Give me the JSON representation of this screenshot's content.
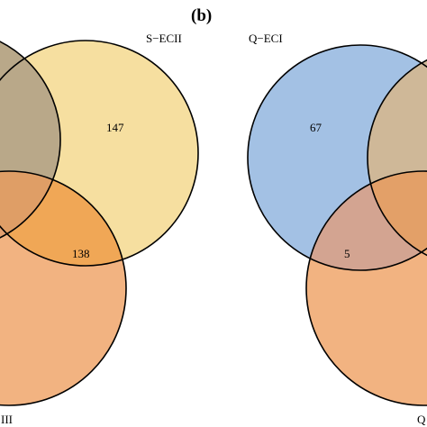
{
  "panel_b_label": "(b)",
  "venn_a": {
    "set_labels": {
      "top_right": "S−ECII",
      "bottom": "III"
    },
    "region_values": {
      "top_right_only": "147",
      "top_right_bottom_overlap": "138"
    },
    "colors": {
      "left_set": "#b9a889",
      "top_right_set": "#f6dfa0",
      "bottom_set": "#f2b381",
      "overlap_top_bottom": "#f0a756",
      "triple_overlap": "#df9e66"
    }
  },
  "venn_b": {
    "set_labels": {
      "left": "Q−ECI",
      "bottom_right": "Q"
    },
    "region_values": {
      "left_only": "67",
      "left_bottom_overlap": "5"
    },
    "colors": {
      "left_set": "#a3c1e4",
      "right_set": "#cfb898",
      "bottom_set": "#f2b381",
      "overlap_left_bottom": "#d3a491",
      "triple_overlap": "#e3a068"
    }
  }
}
